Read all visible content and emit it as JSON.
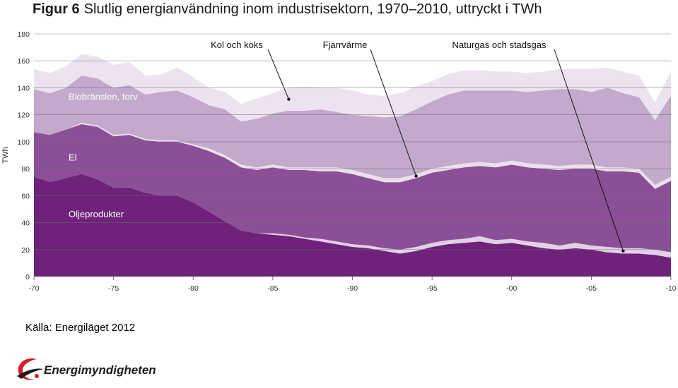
{
  "title": {
    "prefix": "Figur 6",
    "text": "Slutlig energianvändning inom industrisektorn, 1970–2010, uttryckt i TWh"
  },
  "source": "Källa: Energiläget 2012",
  "logo": {
    "name": "Energimyndigheten",
    "icon": "energimyndigheten-swoosh-icon"
  },
  "colors": {
    "oljeprodukter": "#6e2279",
    "naturgas": "#e2d0e6",
    "el": "#8a4f96",
    "fjarrvarme": "#ecdfee",
    "biobransle": "#c3a9cb",
    "kol": "#ede3f0",
    "grid": "#6f6f6f"
  },
  "chart_data": {
    "type": "area",
    "stacked": true,
    "ylabel": "TWh",
    "ylim": [
      0,
      180
    ],
    "yticks": [
      0,
      20,
      40,
      60,
      80,
      100,
      120,
      140,
      160,
      180
    ],
    "xlim": [
      1970,
      2010
    ],
    "xticks": [
      {
        "value": 1970,
        "label": "-70"
      },
      {
        "value": 1975,
        "label": "-75"
      },
      {
        "value": 1980,
        "label": "-80"
      },
      {
        "value": 1985,
        "label": "-85"
      },
      {
        "value": 1990,
        "label": "-90"
      },
      {
        "value": 1995,
        "label": "-95"
      },
      {
        "value": 2000,
        "label": "-00"
      },
      {
        "value": 2005,
        "label": "-05"
      },
      {
        "value": 2010,
        "label": "-10"
      }
    ],
    "grid": true,
    "x": [
      1970,
      1971,
      1972,
      1973,
      1974,
      1975,
      1976,
      1977,
      1978,
      1979,
      1980,
      1981,
      1982,
      1983,
      1984,
      1985,
      1986,
      1987,
      1988,
      1989,
      1990,
      1991,
      1992,
      1993,
      1994,
      1995,
      1996,
      1997,
      1998,
      1999,
      2000,
      2001,
      2002,
      2003,
      2004,
      2005,
      2006,
      2007,
      2008,
      2009,
      2010
    ],
    "series": [
      {
        "name": "Oljeprodukter",
        "key": "oljeprodukter",
        "values": [
          74,
          70,
          73,
          76,
          72,
          66,
          66,
          62,
          60,
          60,
          55,
          48,
          41,
          34,
          32,
          31,
          30,
          28,
          26,
          24,
          22,
          21,
          19,
          17,
          19,
          22,
          24,
          25,
          26,
          24,
          25,
          23,
          21,
          20,
          21,
          20,
          18,
          17,
          17,
          16,
          14
        ]
      },
      {
        "name": "Naturgas och stadsgas",
        "key": "naturgas",
        "values": [
          0,
          0,
          0,
          0,
          0,
          0,
          0,
          0,
          0,
          0,
          0,
          0,
          0,
          0,
          0,
          1,
          1,
          1,
          2,
          2,
          2,
          2,
          2,
          3,
          3,
          3,
          3,
          3,
          4,
          3,
          3,
          3,
          4,
          3,
          4,
          3,
          4,
          4,
          4,
          4,
          4
        ]
      },
      {
        "name": "El",
        "key": "el",
        "values": [
          33,
          35,
          36,
          37,
          39,
          38,
          39,
          39,
          40,
          40,
          42,
          45,
          47,
          47,
          47,
          49,
          48,
          50,
          50,
          52,
          52,
          50,
          49,
          50,
          51,
          52,
          52,
          53,
          52,
          54,
          55,
          55,
          55,
          56,
          55,
          57,
          56,
          57,
          56,
          45,
          53
        ]
      },
      {
        "name": "Fjärrvärme",
        "key": "fjarrvarme",
        "values": [
          0,
          0,
          0,
          1,
          1,
          1,
          1,
          1,
          1,
          1,
          1,
          2,
          2,
          2,
          2,
          2,
          2,
          2,
          3,
          3,
          3,
          3,
          3,
          3,
          3,
          3,
          3,
          3,
          3,
          3,
          3,
          3,
          3,
          3,
          3,
          3,
          3,
          3,
          3,
          3,
          3
        ]
      },
      {
        "name": "Biobränslen, torv",
        "key": "biobransle",
        "values": [
          32,
          31,
          31,
          35,
          35,
          35,
          36,
          33,
          36,
          37,
          35,
          32,
          34,
          32,
          36,
          38,
          42,
          42,
          43,
          41,
          41,
          43,
          45,
          46,
          48,
          50,
          53,
          54,
          53,
          54,
          52,
          53,
          55,
          57,
          56,
          54,
          59,
          55,
          53,
          48,
          60
        ]
      },
      {
        "name": "Kol och koks",
        "key": "kol",
        "values": [
          15,
          15,
          16,
          16,
          16,
          17,
          17,
          14,
          13,
          17,
          15,
          13,
          13,
          13,
          15,
          15,
          17,
          18,
          16,
          18,
          18,
          16,
          16,
          17,
          17,
          15,
          15,
          15,
          15,
          14,
          14,
          14,
          14,
          15,
          15,
          17,
          15,
          16,
          16,
          13,
          18
        ]
      }
    ],
    "inline_labels": [
      {
        "series": "oljeprodukter",
        "text": "Oljeprodukter"
      },
      {
        "series": "el",
        "text": "El"
      },
      {
        "series": "biobransle",
        "text": "Biobränslen, torv"
      }
    ],
    "callouts": [
      {
        "series": "kol",
        "text": "Kol och koks",
        "x": 1986
      },
      {
        "series": "fjarrvarme",
        "text": "Fjärrvärme",
        "x": 1994
      },
      {
        "series": "naturgas",
        "text": "Naturgas och stadsgas",
        "x": 2007
      }
    ]
  }
}
